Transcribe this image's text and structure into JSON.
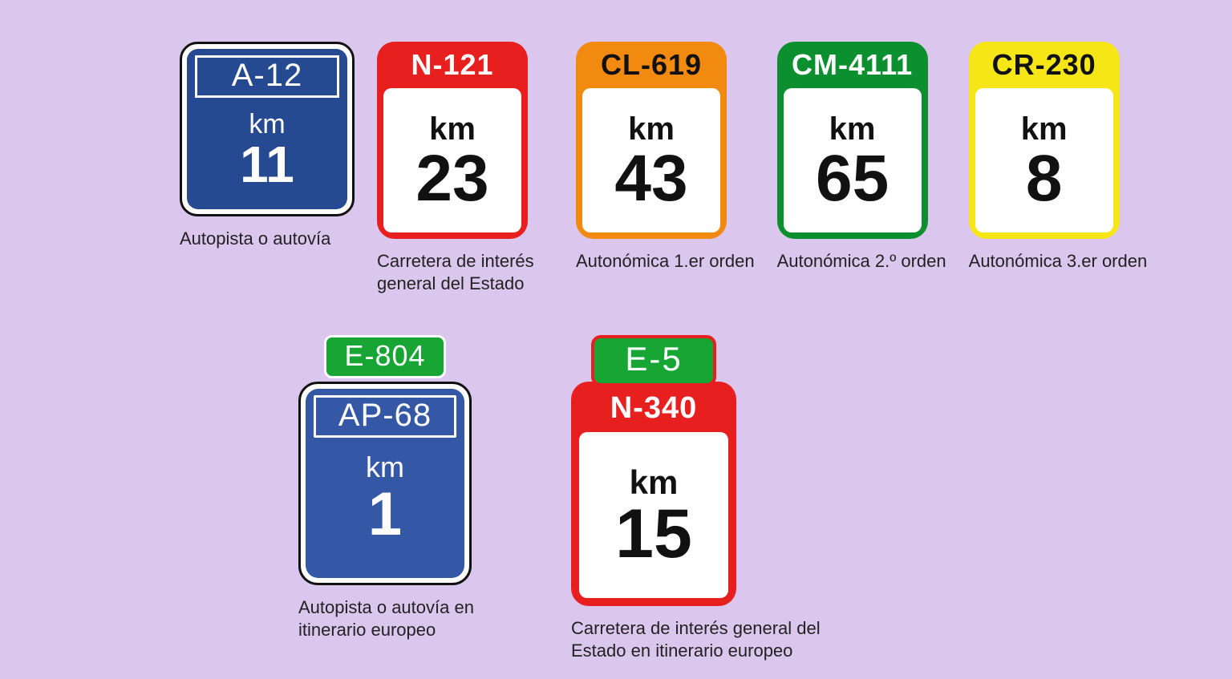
{
  "background_color": "#dbc7ed",
  "km_label": "km",
  "colors": {
    "blue": "#264a91",
    "blue2": "#3558a6",
    "red": "#e81f1f",
    "orange": "#f28a0f",
    "green": "#0c8f2f",
    "yellow": "#f7e617",
    "egreen": "#17a633",
    "white": "#ffffff",
    "black": "#111111"
  },
  "signs": [
    {
      "kind": "blue",
      "code": "A-12",
      "km": "11",
      "caption": "Autopista o autovía"
    },
    {
      "kind": "color",
      "code": "N-121",
      "km": "23",
      "caption": "Carretera de interés general del Estado",
      "bg": "#e81f1f",
      "head_color": "#ffffff"
    },
    {
      "kind": "color",
      "code": "CL-619",
      "km": "43",
      "caption": "Autonómica 1.er orden",
      "bg": "#f28a0f",
      "head_color": "#111111"
    },
    {
      "kind": "color",
      "code": "CM-4111",
      "km": "65",
      "caption": "Autonómica 2.º orden",
      "bg": "#0c8f2f",
      "head_color": "#ffffff"
    },
    {
      "kind": "color",
      "code": "CR-230",
      "km": "8",
      "caption": "Autonómica 3.er orden",
      "bg": "#f7e617",
      "head_color": "#111111"
    },
    {
      "kind": "eu_blue",
      "ecode": "E-804",
      "code": "AP-68",
      "km": "1",
      "caption": "Autopista o autovía en itinerario europeo"
    },
    {
      "kind": "eu_red",
      "ecode": "E-5",
      "code": "N-340",
      "km": "15",
      "caption": "Carretera de interés general del Estado en itinerario europeo"
    }
  ]
}
